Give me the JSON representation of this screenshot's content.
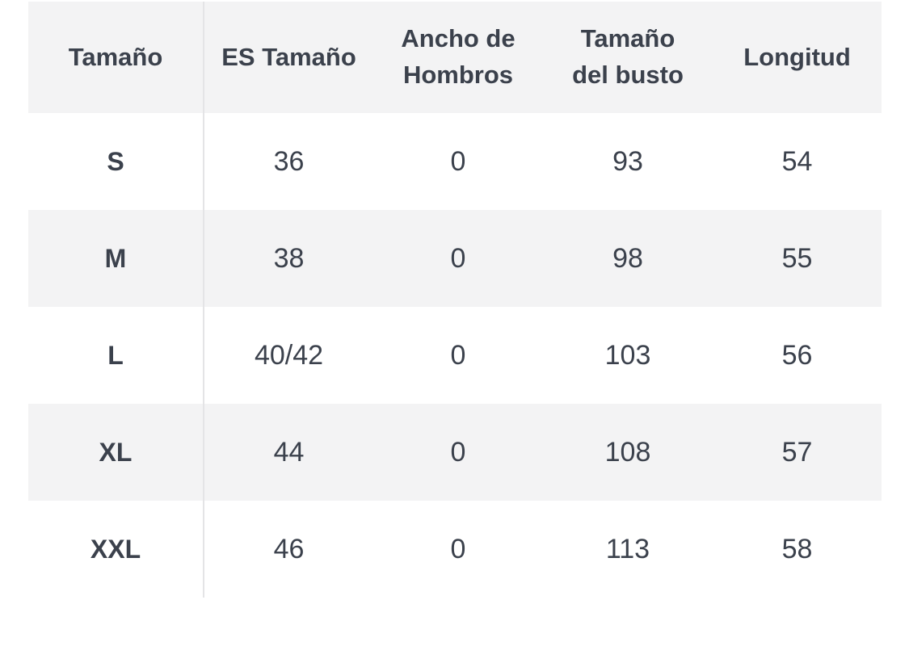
{
  "size_chart": {
    "columns": [
      {
        "id": "tamano",
        "label": "Tamaño"
      },
      {
        "id": "es_tamano",
        "label": "ES Tamaño"
      },
      {
        "id": "ancho_hombros",
        "label": "Ancho de Hombros"
      },
      {
        "id": "tamano_busto",
        "label": "Tamaño del busto"
      },
      {
        "id": "longitud",
        "label": "Longitud"
      }
    ],
    "rows": [
      {
        "cells": [
          "S",
          "36",
          "0",
          "93",
          "54"
        ]
      },
      {
        "cells": [
          "M",
          "38",
          "0",
          "98",
          "55"
        ]
      },
      {
        "cells": [
          "L",
          "40/42",
          "0",
          "103",
          "56"
        ]
      },
      {
        "cells": [
          "XL",
          "44",
          "0",
          "108",
          "57"
        ]
      },
      {
        "cells": [
          "XXL",
          "46",
          "0",
          "113",
          "58"
        ]
      }
    ]
  },
  "colors": {
    "page_bg": "#ffffff",
    "header_bg": "#f3f3f4",
    "stripe_bg": "#f3f3f4",
    "text": "#3b414c",
    "divider": "#e4e4e6"
  }
}
